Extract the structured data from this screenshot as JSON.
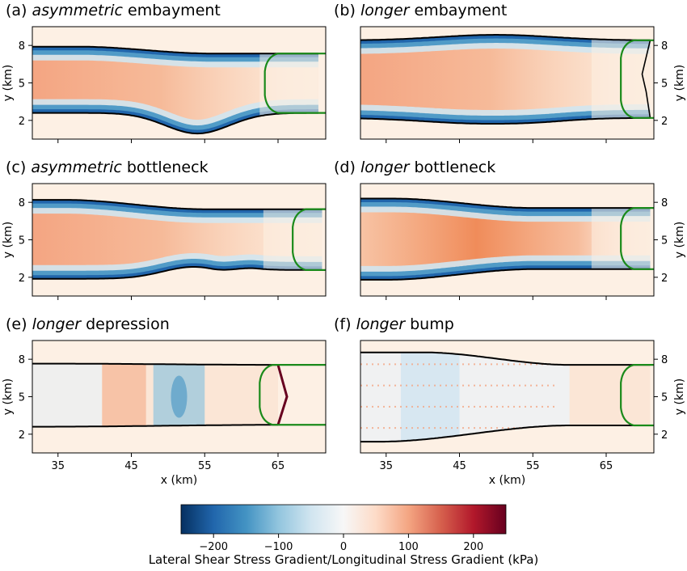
{
  "chart_data": {
    "type": "heatmap",
    "panels": [
      {
        "letter": "(a)",
        "emph": "asymmetric",
        "rest": " embayment",
        "profile": "embayment-asym",
        "green_front_x": 63.2,
        "terminus_x": 70.5
      },
      {
        "letter": "(b)",
        "emph": "longer",
        "rest": " embayment",
        "profile": "embayment-long",
        "green_front_x": 67.0,
        "terminus_x": 71.0
      },
      {
        "letter": "(c)",
        "emph": "asymmetric",
        "rest": " bottleneck",
        "profile": "bottleneck-asym",
        "green_front_x": 67.0,
        "terminus_x": 71.0
      },
      {
        "letter": "(d)",
        "emph": "longer",
        "rest": " bottleneck",
        "profile": "bottleneck-long",
        "green_front_x": 67.0,
        "terminus_x": 71.0
      },
      {
        "letter": "(e)",
        "emph": "longer",
        "rest": " depression",
        "profile": "depression-long",
        "green_front_x": 62.5,
        "terminus_x": 65.0
      },
      {
        "letter": "(f)",
        "emph": "longer",
        "rest": " bump",
        "profile": "bump-long",
        "green_front_x": 67.0,
        "terminus_x": 71.0
      }
    ],
    "x_ticks": [
      "35",
      "45",
      "55",
      "65"
    ],
    "y_ticks": [
      "8",
      "5",
      "2"
    ],
    "xlabel": "x (km)",
    "ylabel": "y (km)",
    "xlim": [
      31.5,
      71.5
    ],
    "ylim": [
      0.5,
      9.5
    ],
    "colorbar": {
      "label": "Lateral Shear Stress Gradient/Longitudinal Stress Gradient (kPa)",
      "ticks": [
        "−200",
        "−100",
        "0",
        "100",
        "200"
      ],
      "range": [
        -250,
        250
      ],
      "colormap": [
        "#053061",
        "#2166ac",
        "#4393c3",
        "#92c5de",
        "#d1e5f0",
        "#f7f7f7",
        "#fddbc7",
        "#f4a582",
        "#d6604d",
        "#b2182b",
        "#67001f"
      ]
    },
    "colors": {
      "background": "#fdf0e4",
      "margin_blue_dark": "#2166ac",
      "center_orange": "#f4a582",
      "outline": "#000000",
      "front_line": "#1a8a1a"
    }
  }
}
